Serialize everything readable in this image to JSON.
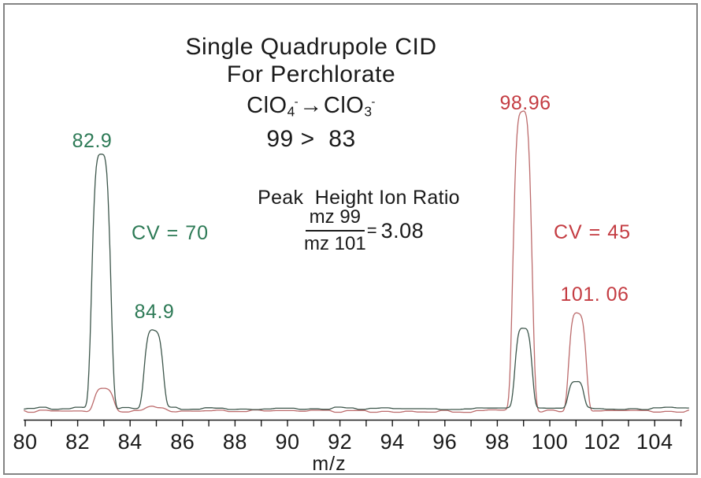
{
  "title": {
    "line1": "Single Quadrupole CID",
    "line2": "For Perchlorate",
    "formula": {
      "left_base": "ClO",
      "left_sub": "4",
      "left_charge": "-",
      "arrow": "→",
      "right_base": "ClO",
      "right_sub": "3",
      "right_charge": "-"
    },
    "transition": "99 >  83"
  },
  "ratio": {
    "title": "Peak  Height Ion Ratio",
    "numerator": "mz 99",
    "denominator": "mz 101",
    "equals": "=",
    "value": "3.08"
  },
  "annotations": {
    "green_cv": "CV = 70",
    "red_cv": "CV = 45",
    "green_peak1": "82.9",
    "green_peak2": "84.9",
    "red_peak1": "98.96",
    "red_peak2": "101. 06"
  },
  "colors": {
    "green_text": "#2d7a56",
    "green_trace": "#3d564b",
    "red_text": "#c43c42",
    "red_trace": "#bc6b6c",
    "axis": "#1a1a1a",
    "frame": "#848484",
    "background": "#ffffff"
  },
  "chart_data": {
    "type": "line",
    "title": "Single Quadrupole CID For Perchlorate ClO4- → ClO3-  99 > 83",
    "xlabel": "m/z",
    "ylabel": "",
    "xlim": [
      80,
      105.4
    ],
    "ylim_relative": [
      0,
      1.1
    ],
    "grid": false,
    "legend_position": "none",
    "x_tick_labels": [
      "80",
      "82",
      "84",
      "86",
      "88",
      "90",
      "92",
      "94",
      "96",
      "98",
      "100",
      "102",
      "104"
    ],
    "x_tick_values": [
      80,
      82,
      84,
      86,
      88,
      90,
      92,
      94,
      96,
      98,
      100,
      102,
      104
    ],
    "x_minor_tick_values": [
      80,
      81,
      82,
      83,
      84,
      85,
      86,
      87,
      88,
      89,
      90,
      91,
      92,
      93,
      94,
      95,
      96,
      97,
      98,
      99,
      100,
      101,
      102,
      103,
      104,
      105
    ],
    "ion_ratio": {
      "label": "Peak  Height Ion Ratio",
      "numerator": "mz 99",
      "denominator": "mz 101",
      "value": 3.08
    },
    "series": [
      {
        "name": "CV = 45",
        "color_key": "red_trace",
        "label_color_key": "red_text",
        "peaks": [
          {
            "mz": 83.0,
            "rel_height": 0.075,
            "width": 0.42,
            "label": ""
          },
          {
            "mz": 85.0,
            "rel_height": 0.013,
            "width": 0.45,
            "label": ""
          },
          {
            "mz": 98.96,
            "rel_height": 1.0,
            "width": 0.4,
            "label": "98.96"
          },
          {
            "mz": 101.06,
            "rel_height": 0.325,
            "width": 0.37,
            "label": "101. 06"
          }
        ]
      },
      {
        "name": "CV = 70",
        "color_key": "green_trace",
        "label_color_key": "green_text",
        "peaks": [
          {
            "mz": 82.9,
            "rel_height": 0.845,
            "width": 0.4,
            "label": "82.9"
          },
          {
            "mz": 84.9,
            "rel_height": 0.26,
            "width": 0.4,
            "label": "84.9"
          },
          {
            "mz": 99.0,
            "rel_height": 0.265,
            "width": 0.36,
            "label": ""
          },
          {
            "mz": 101.0,
            "rel_height": 0.09,
            "width": 0.33,
            "label": ""
          }
        ]
      }
    ]
  }
}
